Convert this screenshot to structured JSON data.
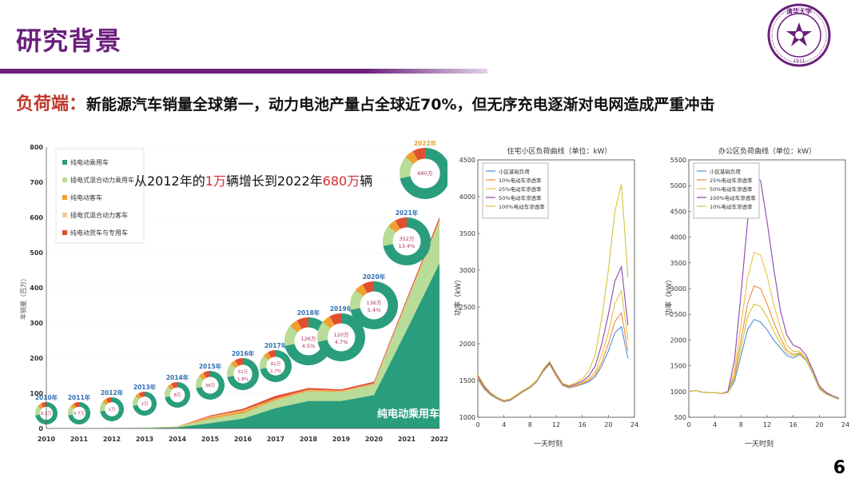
{
  "slide": {
    "title": "研究背景",
    "subtitle_key": "负荷端：",
    "subtitle_text": "新能源汽车销量全球第一，动力电池产量占全球近70%，但无序充电逐渐对电网造成严重冲击",
    "page_number": "6",
    "logo_label": "清华大学",
    "logo_year": "1911"
  },
  "colors": {
    "brand": "#6b1f7b",
    "accent_red": "#c0392b",
    "teal": "#2a9d7c",
    "light_green": "#b9dc98",
    "orange": "#f0a030",
    "peach": "#f5c897",
    "red": "#e05030"
  },
  "chart_data": [
    {
      "type": "area",
      "title": "从2012年的1万辆增长到2022年680万辆",
      "title_parts": [
        "从2012年的",
        "1万",
        "辆增长到2022年",
        "680万",
        "辆"
      ],
      "ylabel": "年销量（百万）",
      "ylim": [
        0,
        800
      ],
      "yticks": [
        0,
        100,
        200,
        300,
        400,
        500,
        600,
        700,
        800
      ],
      "x": [
        2010,
        2011,
        2012,
        2013,
        2014,
        2015,
        2016,
        2017,
        2018,
        2019,
        2020,
        2021,
        2022
      ],
      "xticklabels": [
        "2010",
        "2011",
        "2012",
        "2013",
        "2014",
        "2015",
        "2016",
        "2017",
        "2018",
        "2019",
        "2020",
        "2021",
        "2022"
      ],
      "series": [
        {
          "name": "纯电动乘用车",
          "values": [
            0,
            0,
            1,
            1,
            3,
            15,
            28,
            58,
            78,
            78,
            95,
            280,
            470
          ]
        },
        {
          "name": "插电式混合动力乘用车",
          "values": [
            0,
            0,
            0,
            1,
            2,
            12,
            15,
            22,
            28,
            26,
            30,
            80,
            120
          ]
        },
        {
          "name": "纯电动客车",
          "values": [
            0,
            0,
            0,
            0,
            1,
            5,
            6,
            4,
            3,
            2,
            2,
            2,
            2
          ]
        },
        {
          "name": "插电式混合动力客车",
          "values": [
            0,
            0,
            0,
            0,
            0,
            2,
            2,
            1,
            1,
            1,
            1,
            1,
            1
          ]
        },
        {
          "name": "纯电动货车与专用车",
          "values": [
            0,
            0,
            0,
            0,
            0,
            3,
            5,
            8,
            5,
            4,
            5,
            6,
            8
          ]
        }
      ],
      "area_label": "纯电动乘用车",
      "legend_position": "top-left",
      "donuts": [
        {
          "year": "2010年",
          "value": "0.2万",
          "pct": ""
        },
        {
          "year": "2011年",
          "value": "0.7万",
          "pct": ""
        },
        {
          "year": "2012年",
          "value": "1万",
          "pct": ""
        },
        {
          "year": "2013年",
          "value": "2万",
          "pct": ""
        },
        {
          "year": "2014年",
          "value": "8万",
          "pct": ""
        },
        {
          "year": "2015年",
          "value": "38万",
          "pct": ""
        },
        {
          "year": "2016年",
          "value": "51万",
          "pct": "1.8%"
        },
        {
          "year": "2017年",
          "value": "81万",
          "pct": "2.7%"
        },
        {
          "year": "2018年",
          "value": "126万",
          "pct": "4.5%"
        },
        {
          "year": "2019年",
          "value": "120万",
          "pct": "4.7%"
        },
        {
          "year": "2020年",
          "value": "136万",
          "pct": "5.4%"
        },
        {
          "year": "2021年",
          "value": "352万",
          "pct": "13.4%"
        },
        {
          "year": "2022年",
          "value": "680万",
          "pct": ""
        }
      ]
    },
    {
      "type": "line",
      "title": "住宅小区负荷曲线（单位：kW）",
      "xlabel": "一天时刻",
      "ylabel": "功率（kW）",
      "xlim": [
        0,
        24
      ],
      "ylim": [
        1000,
        4500
      ],
      "xticks": [
        0,
        4,
        8,
        12,
        16,
        20,
        24
      ],
      "yticks": [
        1000,
        1500,
        2000,
        2500,
        3000,
        3500,
        4000,
        4500
      ],
      "x": [
        0,
        1,
        2,
        3,
        4,
        5,
        6,
        7,
        8,
        9,
        10,
        11,
        12,
        13,
        14,
        15,
        16,
        17,
        18,
        19,
        20,
        21,
        22,
        23
      ],
      "series": [
        {
          "name": "小区基础负荷",
          "color": "#4a90d9",
          "values": [
            1520,
            1380,
            1300,
            1250,
            1210,
            1230,
            1290,
            1350,
            1400,
            1480,
            1620,
            1720,
            1560,
            1430,
            1400,
            1420,
            1450,
            1480,
            1550,
            1700,
            1900,
            2150,
            2230,
            1800
          ]
        },
        {
          "name": "10%电动车渗透率",
          "color": "#f08a3c",
          "values": [
            1530,
            1390,
            1305,
            1255,
            1215,
            1235,
            1295,
            1355,
            1405,
            1485,
            1625,
            1725,
            1565,
            1435,
            1405,
            1425,
            1460,
            1500,
            1580,
            1750,
            2000,
            2300,
            2420,
            1900
          ]
        },
        {
          "name": "25%电动车渗透率",
          "color": "#e8c23c",
          "values": [
            1540,
            1400,
            1310,
            1260,
            1220,
            1240,
            1300,
            1360,
            1410,
            1490,
            1630,
            1730,
            1570,
            1440,
            1410,
            1435,
            1470,
            1520,
            1620,
            1850,
            2150,
            2550,
            2720,
            2050
          ]
        },
        {
          "name": "50%电动车渗透率",
          "color": "#8e44ad",
          "values": [
            1560,
            1410,
            1320,
            1265,
            1225,
            1245,
            1305,
            1365,
            1415,
            1495,
            1640,
            1740,
            1580,
            1450,
            1420,
            1450,
            1490,
            1560,
            1700,
            2000,
            2400,
            2850,
            3050,
            2250
          ]
        },
        {
          "name": "100%电动车渗透率",
          "color": "#d4c53a",
          "values": [
            1580,
            1430,
            1330,
            1270,
            1230,
            1250,
            1310,
            1370,
            1420,
            1500,
            1650,
            1760,
            1600,
            1460,
            1430,
            1470,
            1520,
            1630,
            1850,
            2350,
            3000,
            3800,
            4170,
            2900
          ]
        }
      ]
    },
    {
      "type": "line",
      "title": "办公区负荷曲线（单位：kW）",
      "xlabel": "一天时刻",
      "ylabel": "功率（kW）",
      "xlim": [
        0,
        24
      ],
      "ylim": [
        500,
        5500
      ],
      "xticks": [
        0,
        4,
        8,
        12,
        16,
        20,
        24
      ],
      "yticks": [
        500,
        1000,
        1500,
        2000,
        2500,
        3000,
        3500,
        4000,
        4500,
        5000,
        5500
      ],
      "x": [
        0,
        1,
        2,
        3,
        4,
        5,
        6,
        7,
        8,
        9,
        10,
        11,
        12,
        13,
        14,
        15,
        16,
        17,
        18,
        19,
        20,
        21,
        22,
        23
      ],
      "series": [
        {
          "name": "小区基础负荷",
          "color": "#4a90d9",
          "values": [
            1000,
            1020,
            990,
            980,
            980,
            960,
            980,
            1200,
            1700,
            2200,
            2400,
            2350,
            2200,
            2000,
            1850,
            1700,
            1650,
            1720,
            1600,
            1350,
            1050,
            950,
            900,
            850
          ]
        },
        {
          "name": "25%电动车渗透率",
          "color": "#f08a3c",
          "values": [
            1000,
            1020,
            990,
            980,
            980,
            960,
            985,
            1300,
            2000,
            2700,
            3050,
            3000,
            2700,
            2350,
            2050,
            1800,
            1720,
            1750,
            1620,
            1370,
            1070,
            960,
            910,
            860
          ]
        },
        {
          "name": "50%电动车渗透率",
          "color": "#e8c23c",
          "values": [
            1000,
            1020,
            990,
            980,
            980,
            960,
            990,
            1400,
            2300,
            3200,
            3700,
            3650,
            3250,
            2700,
            2250,
            1900,
            1780,
            1780,
            1640,
            1390,
            1090,
            970,
            915,
            865
          ]
        },
        {
          "name": "100%电动车渗透率",
          "color": "#8e44ad",
          "values": [
            1000,
            1020,
            990,
            980,
            980,
            960,
            1000,
            1600,
            2900,
            4300,
            5150,
            5100,
            4300,
            3400,
            2600,
            2100,
            1900,
            1850,
            1700,
            1420,
            1110,
            985,
            920,
            870
          ]
        },
        {
          "name": "10%电动车渗透率",
          "color": "#d4c53a",
          "values": [
            1000,
            1020,
            990,
            980,
            980,
            960,
            982,
            1250,
            1850,
            2450,
            2700,
            2650,
            2450,
            2170,
            1950,
            1750,
            1690,
            1735,
            1610,
            1360,
            1060,
            955,
            905,
            855
          ]
        }
      ]
    }
  ]
}
